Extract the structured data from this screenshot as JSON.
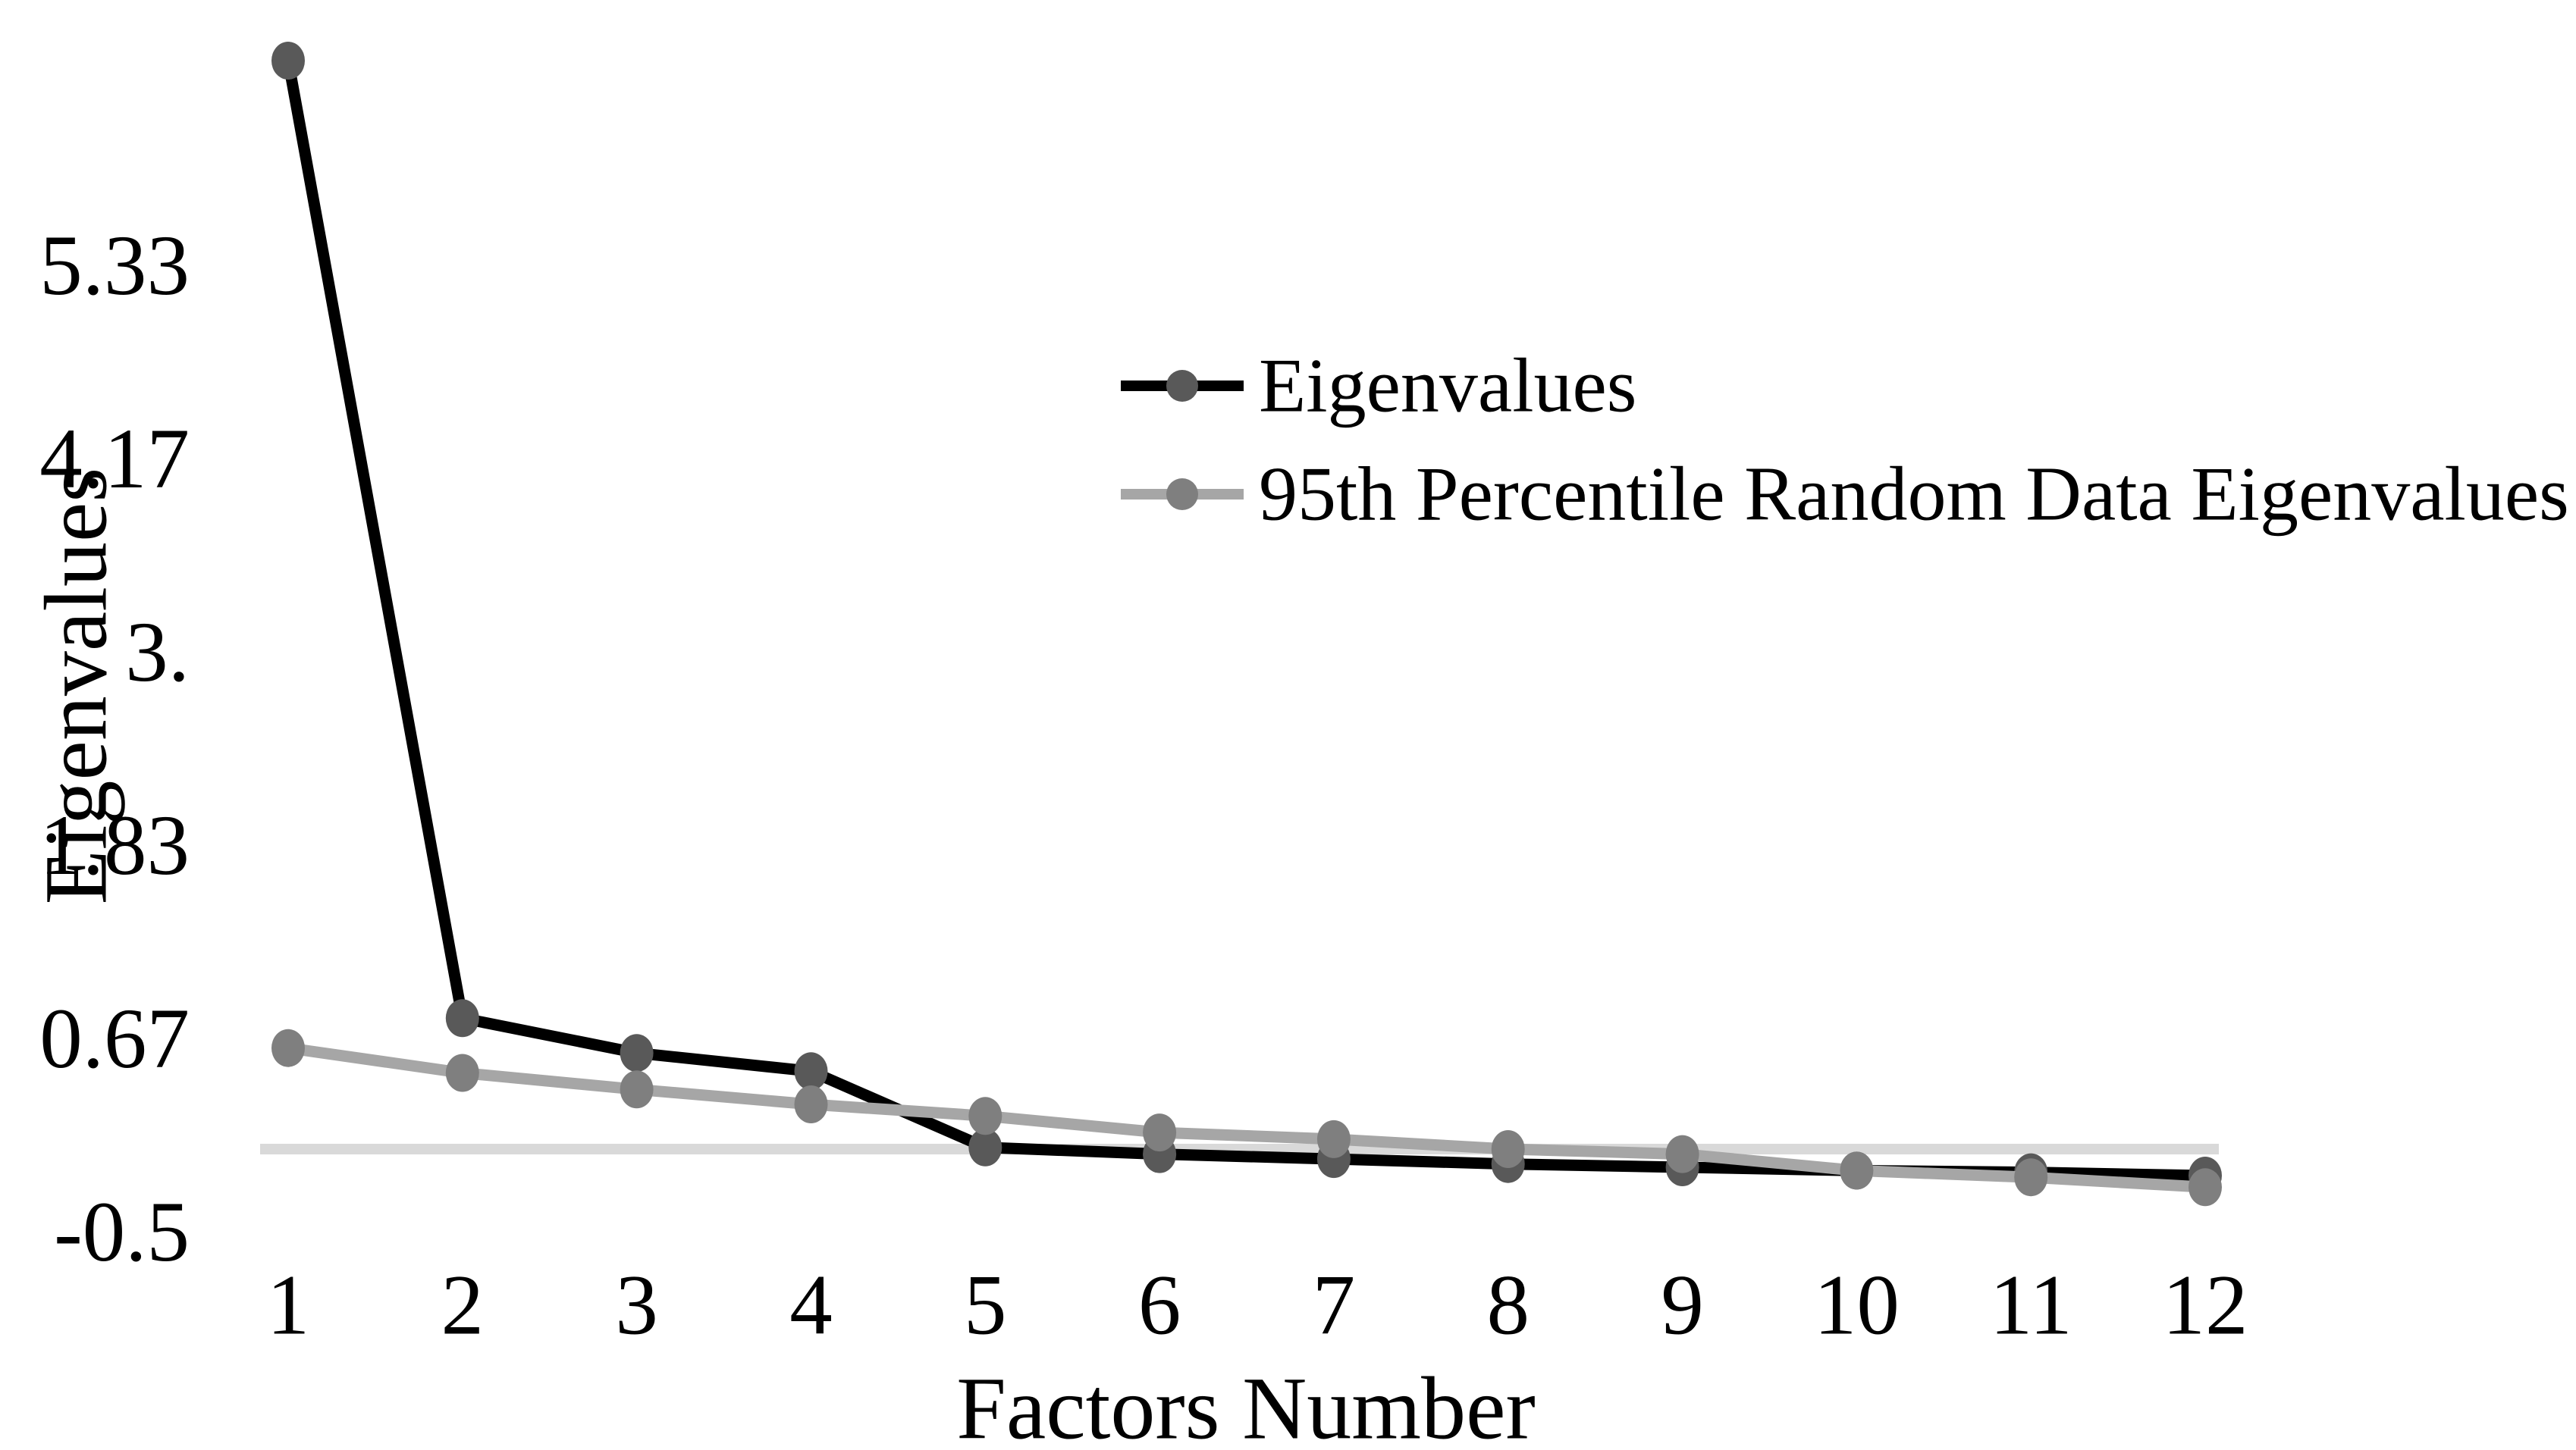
{
  "chart_data": {
    "type": "line",
    "title": "",
    "xlabel": "Factors Number",
    "ylabel": "Eigenvalues",
    "categories": [
      "1",
      "2",
      "3",
      "4",
      "5",
      "6",
      "7",
      "8",
      "9",
      "10",
      "11",
      "12"
    ],
    "series": [
      {
        "name": "Eigenvalues",
        "line_color": "#000000",
        "marker_color": "#595959",
        "values": [
          6.57,
          0.79,
          0.58,
          0.47,
          0.01,
          -0.03,
          -0.06,
          -0.09,
          -0.11,
          -0.13,
          -0.14,
          -0.16
        ]
      },
      {
        "name": "95th Percentile Random Data Eigenvalues",
        "line_color": "#a6a6a6",
        "marker_color": "#7f7f7f",
        "values": [
          0.61,
          0.46,
          0.36,
          0.27,
          0.2,
          0.1,
          0.06,
          0.0,
          -0.03,
          -0.13,
          -0.17,
          -0.23
        ]
      }
    ],
    "y_axis": {
      "tick_labels": [
        "5.33",
        "4.17",
        "3.",
        "1.83",
        "0.67",
        "-0.5"
      ],
      "tick_values": [
        5.3333,
        4.1667,
        3.0,
        1.8333,
        0.6667,
        -0.5
      ],
      "ylim": [
        -0.5,
        6.7
      ]
    },
    "x_axis": {
      "xlim": [
        1,
        12
      ]
    },
    "grid": {
      "gridlines": "zero-line-only",
      "zero_line_color": "#d9d9d9"
    },
    "legend": {
      "position": "inside-upper-right",
      "border": "none"
    },
    "background_color": "#ffffff",
    "text_color": "#000000"
  }
}
